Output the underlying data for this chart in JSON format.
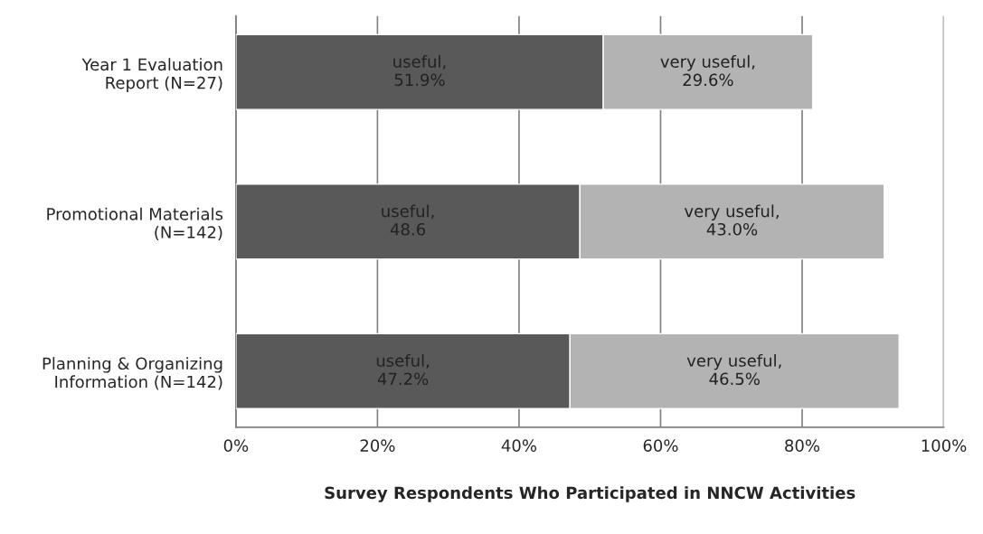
{
  "chart_data": {
    "type": "bar",
    "orientation": "horizontal",
    "stacked": true,
    "xlabel": "Survey Respondents Who Participated in NNCW Activities",
    "categories": [
      "Year 1 Evaluation\nReport (N=27)",
      "Promotional Materials\n(N=142)",
      "Planning & Organizing\nInformation (N=142)"
    ],
    "series": [
      {
        "name": "useful,",
        "color": "#595959",
        "values": [
          51.9,
          48.6,
          47.2
        ],
        "value_labels": [
          "51.9%",
          "48.6",
          "47.2%"
        ]
      },
      {
        "name": "very useful,",
        "color": "#b3b3b3",
        "values": [
          29.6,
          43.0,
          46.5
        ],
        "value_labels": [
          "29.6%",
          "43.0%",
          "46.5%"
        ]
      }
    ],
    "xlim": [
      0,
      100
    ],
    "xticks": [
      {
        "value": 0,
        "label": "0%"
      },
      {
        "value": 20,
        "label": "20%"
      },
      {
        "value": 40,
        "label": "40%"
      },
      {
        "value": 60,
        "label": "60%"
      },
      {
        "value": 80,
        "label": "80%"
      },
      {
        "value": 100,
        "label": "100%"
      }
    ],
    "grid": "x",
    "legend": false
  }
}
